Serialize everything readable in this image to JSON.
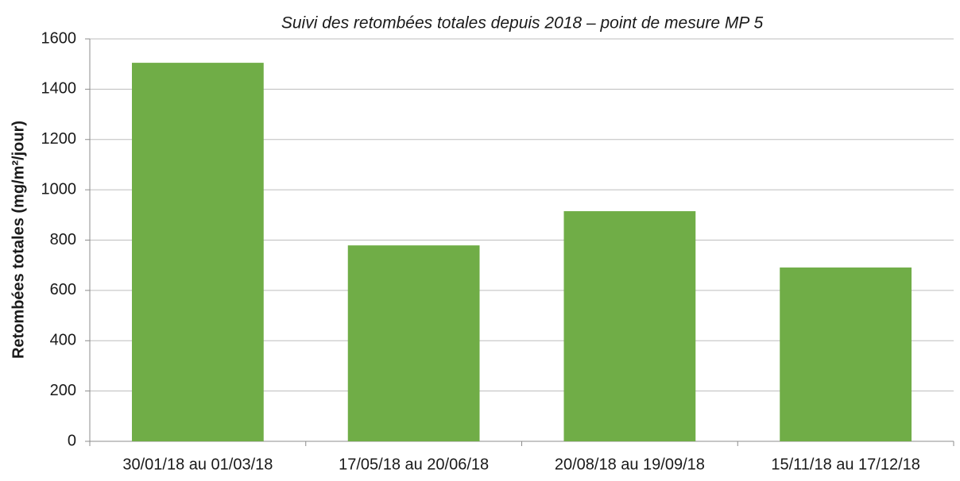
{
  "chart_data": {
    "type": "bar",
    "title": "Suivi des retombées totales depuis 2018 – point de mesure MP 5",
    "y_label": "Retombées totales (mg/m²/jour)",
    "categories": [
      "30/01/18 au 01/03/18",
      "17/05/18 au 20/06/18",
      "20/08/18 au 19/09/18",
      "15/11/18 au 17/12/18"
    ],
    "values": [
      1505,
      779,
      915,
      691
    ],
    "color": "#70ad47",
    "ylim": [
      0,
      1600
    ],
    "yticks": [
      0,
      200,
      400,
      600,
      800,
      1000,
      1200,
      1400,
      1600
    ],
    "grid": true
  }
}
